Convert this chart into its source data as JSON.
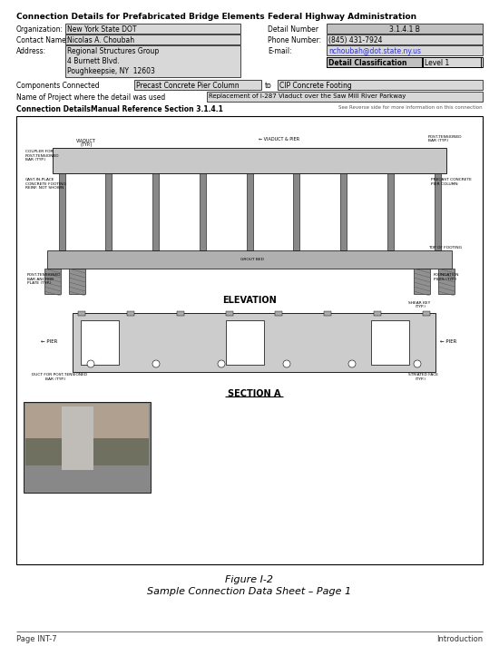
{
  "title_left": "Connection Details for Prefabricated Bridge Elements",
  "title_right": "Federal Highway Administration",
  "org_label": "Organization:",
  "org_value": "New York State DOT",
  "contact_label": "Contact Name:",
  "contact_value": "Nicolas A. Choubah",
  "address_label": "Address:",
  "address_line1": "Regional Structures Group",
  "address_line2": "4 Burnett Blvd.",
  "address_line3": "Poughkeepsie, NY  12603",
  "detail_number_label": "Detail Number",
  "detail_number_value": "3.1.4.1 B",
  "phone_label": "Phone Number:",
  "phone_value": "(845) 431-7924",
  "email_label": "E-mail:",
  "email_value": "nchoubah@dot.state.ny.us",
  "detail_class_label": "Detail Classification",
  "detail_class_value": "Level 1",
  "components_label": "Components Connected",
  "components_from": "Precast Concrete Pier Column",
  "components_to": "to",
  "components_to_value": "CIP Concrete Footing",
  "project_label": "Name of Project where the detail was used",
  "project_value": "Replacement of I-287 Viaduct over the Saw Mill River Parkway",
  "connection_details_label": "Connection Details:",
  "connection_details_value": "Manual Reference Section 3.1.4.1",
  "connection_details_note": "See Reverse side for more information on this connection",
  "figure_caption_line1": "Figure I-2",
  "figure_caption_line2": "Sample Connection Data Sheet – Page 1",
  "footer_left": "Page INT-7",
  "footer_right": "Introduction",
  "bg_color": "#ffffff",
  "box_fill_dark": "#c0c0c0",
  "box_fill_light": "#d8d8d8",
  "input_fill": "#d8d8d8",
  "border_color": "#000000",
  "email_color": "#3333cc",
  "elevation_label": "ELEVATION",
  "section_label": "SECTION A"
}
